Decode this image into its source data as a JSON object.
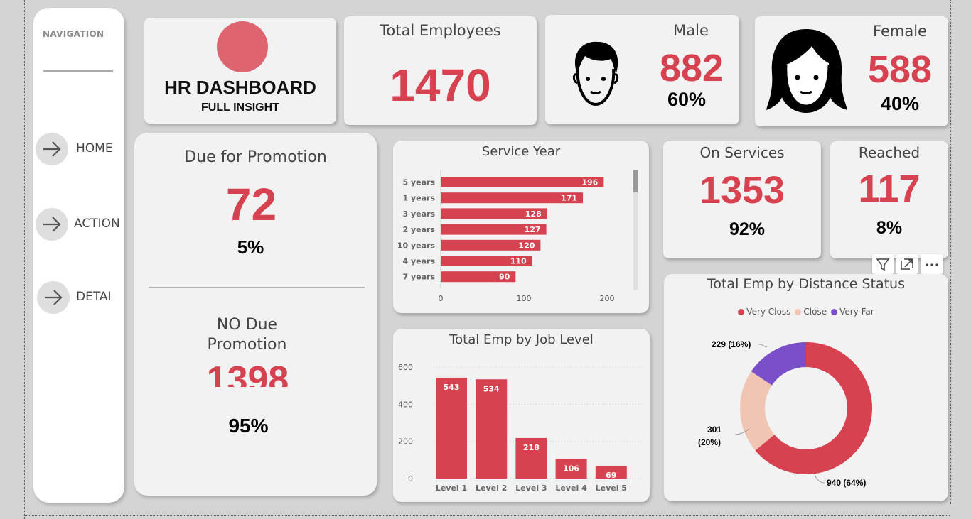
{
  "navigation": {
    "title": "NAVIGATION",
    "items": [
      {
        "label": "HOME",
        "icon": "arrow-right-icon"
      },
      {
        "label": "ACTION",
        "icon": "arrow-right-icon"
      },
      {
        "label": "DETAI",
        "icon": "arrow-right-icon"
      }
    ]
  },
  "header": {
    "title": "HR DASHBOARD",
    "subtitle": "FULL INSIGHT",
    "logo_color": "#de6470"
  },
  "kpis": {
    "total_employees": {
      "label": "Total Employees",
      "value": "1470"
    },
    "male": {
      "label": "Male",
      "value": "882",
      "pct": "60%",
      "icon": "male-avatar-icon"
    },
    "female": {
      "label": "Female",
      "value": "588",
      "pct": "40%",
      "icon": "female-avatar-icon"
    },
    "due_promotion": {
      "label": "Due for Promotion",
      "value": "72",
      "pct": "5%"
    },
    "no_due_promotion": {
      "label_line1": "NO Due",
      "label_line2": "Promotion",
      "value": "1398",
      "pct": "95%"
    },
    "on_services": {
      "label": "On Services",
      "value": "1353",
      "pct": "92%"
    },
    "reached": {
      "label": "Reached",
      "value": "117",
      "pct": "8%"
    }
  },
  "colors": {
    "accent": "#d6424f",
    "close": "#f2c4b2",
    "very_far": "#7b4fc8"
  },
  "chart_data": [
    {
      "type": "bar",
      "orientation": "horizontal",
      "title": "Service Year",
      "categories": [
        "5 years",
        "1 years",
        "3 years",
        "2 years",
        "10 years",
        "4 years",
        "7 years"
      ],
      "values": [
        196,
        171,
        128,
        127,
        120,
        110,
        90
      ],
      "xlim": [
        0,
        230
      ],
      "xticks": [
        "0",
        "100",
        "200"
      ]
    },
    {
      "type": "bar",
      "title": "Total Emp by Job Level",
      "categories": [
        "Level 1",
        "Level 2",
        "Level 3",
        "Level 4",
        "Level 5"
      ],
      "values": [
        543,
        534,
        218,
        106,
        69
      ],
      "ylim": [
        0,
        600
      ],
      "yticks": [
        "0",
        "200",
        "400",
        "600"
      ],
      "grid": true
    },
    {
      "type": "pie",
      "title": "Total Emp by Distance Status",
      "legend_position": "top",
      "slices": [
        {
          "name": "Very Closs",
          "value": 940,
          "label": "940 (64%)",
          "color": "#d6424f"
        },
        {
          "name": "Close",
          "value": 301,
          "label_line1": "301",
          "label_line2": "(20%)",
          "color": "#f2c4b2"
        },
        {
          "name": "Very Far",
          "value": 229,
          "label": "229 (16%)",
          "color": "#7b4fc8"
        }
      ]
    }
  ]
}
